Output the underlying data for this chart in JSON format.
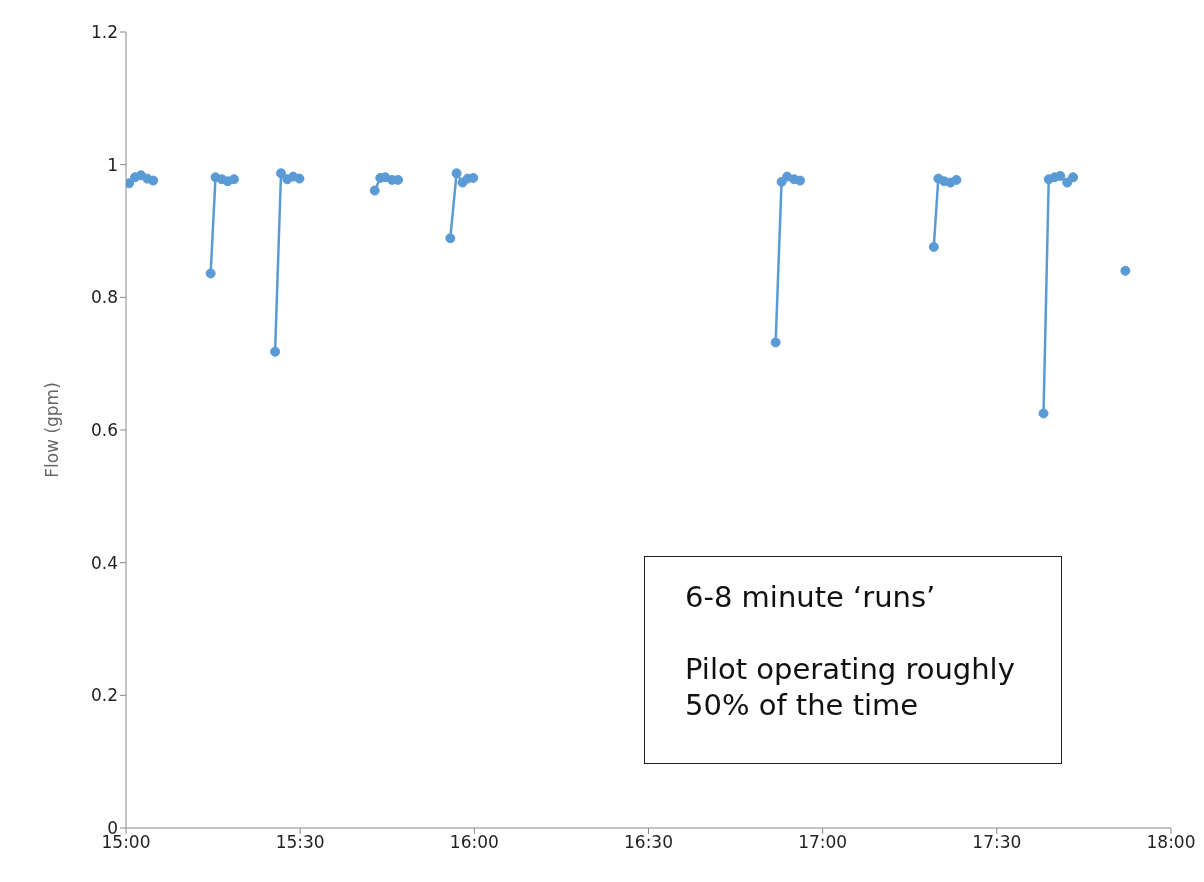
{
  "chart_data": {
    "type": "line",
    "ylabel": "Flow (gpm)",
    "x": [
      15.009,
      15.026,
      15.043,
      15.061,
      15.078,
      15.16,
      15.243,
      15.257,
      15.275,
      15.292,
      15.31,
      15.37,
      15.428,
      15.445,
      15.463,
      15.48,
      15.498,
      15.6,
      15.714,
      15.73,
      15.744,
      15.764,
      15.781,
      15.85,
      15.931,
      15.949,
      15.966,
      15.981,
      15.997,
      16.4,
      16.865,
      16.882,
      16.898,
      16.918,
      16.935,
      17.1,
      17.319,
      17.332,
      17.349,
      17.367,
      17.384,
      17.5,
      17.634,
      17.649,
      17.666,
      17.682,
      17.702,
      17.719,
      17.8,
      17.869
    ],
    "series": [
      {
        "color": "#5b9bd5",
        "values": [
          0.972,
          0.981,
          0.984,
          0.979,
          0.976,
          null,
          0.836,
          0.981,
          0.978,
          0.975,
          0.978,
          null,
          0.718,
          0.987,
          0.978,
          0.982,
          0.979,
          null,
          0.961,
          0.98,
          0.981,
          0.977,
          0.977,
          null,
          0.889,
          0.987,
          0.973,
          0.979,
          0.98,
          null,
          0.732,
          0.974,
          0.982,
          0.978,
          0.976,
          null,
          0.876,
          0.979,
          0.975,
          0.973,
          0.977,
          null,
          0.625,
          0.978,
          0.981,
          0.983,
          0.973,
          0.981,
          null,
          0.84
        ]
      }
    ],
    "xlim": [
      15,
      18
    ],
    "xticks": [
      {
        "value": 15,
        "label": "15:00"
      },
      {
        "value": 15.5,
        "label": "15:30"
      },
      {
        "value": 16,
        "label": "16:00"
      },
      {
        "value": 16.5,
        "label": "16:30"
      },
      {
        "value": 17,
        "label": "17:00"
      },
      {
        "value": 17.5,
        "label": "17:30"
      },
      {
        "value": 18,
        "label": "18:00"
      }
    ],
    "ylim": [
      0,
      1.2
    ],
    "yticks": [
      0,
      0.2,
      0.4,
      0.6,
      0.8,
      1,
      1.2
    ],
    "marker": "circle",
    "line_style": "solid",
    "annotations": [
      "6-8 minute ‘runs’",
      "Pilot operating roughly 50% of the time"
    ]
  }
}
